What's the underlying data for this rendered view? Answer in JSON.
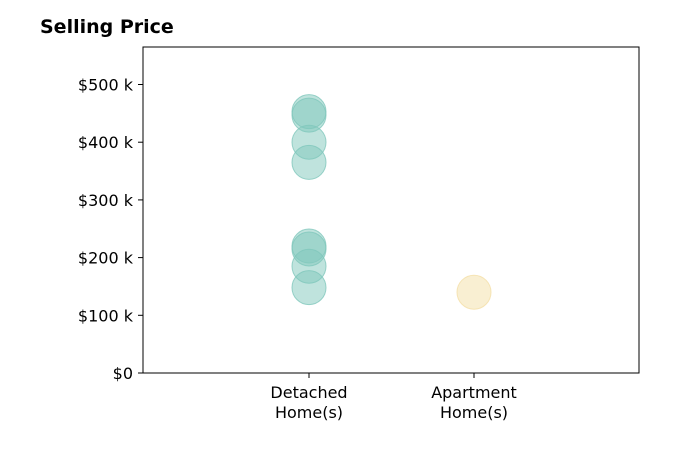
{
  "chart_data": {
    "type": "scatter",
    "title": "Selling Price",
    "xlabel": "",
    "ylabel": "",
    "categories": [
      "Detached\nHome(s)",
      "Apartment\nHome(s)"
    ],
    "ylim": [
      0,
      565000
    ],
    "yticks": [
      0,
      100000,
      200000,
      300000,
      400000,
      500000
    ],
    "ytick_labels": [
      "$0",
      "$100 k",
      "$200 k",
      "$300 k",
      "$400 k",
      "$500 k"
    ],
    "grid": false,
    "series": [
      {
        "category": "Detached\nHome(s)",
        "color": "#7fc7bb",
        "values": [
          453000,
          447000,
          400000,
          365000,
          220000,
          215000,
          185000,
          148000
        ]
      },
      {
        "category": "Apartment\nHome(s)",
        "color": "#f4dfa6",
        "values": [
          140000
        ]
      }
    ]
  }
}
